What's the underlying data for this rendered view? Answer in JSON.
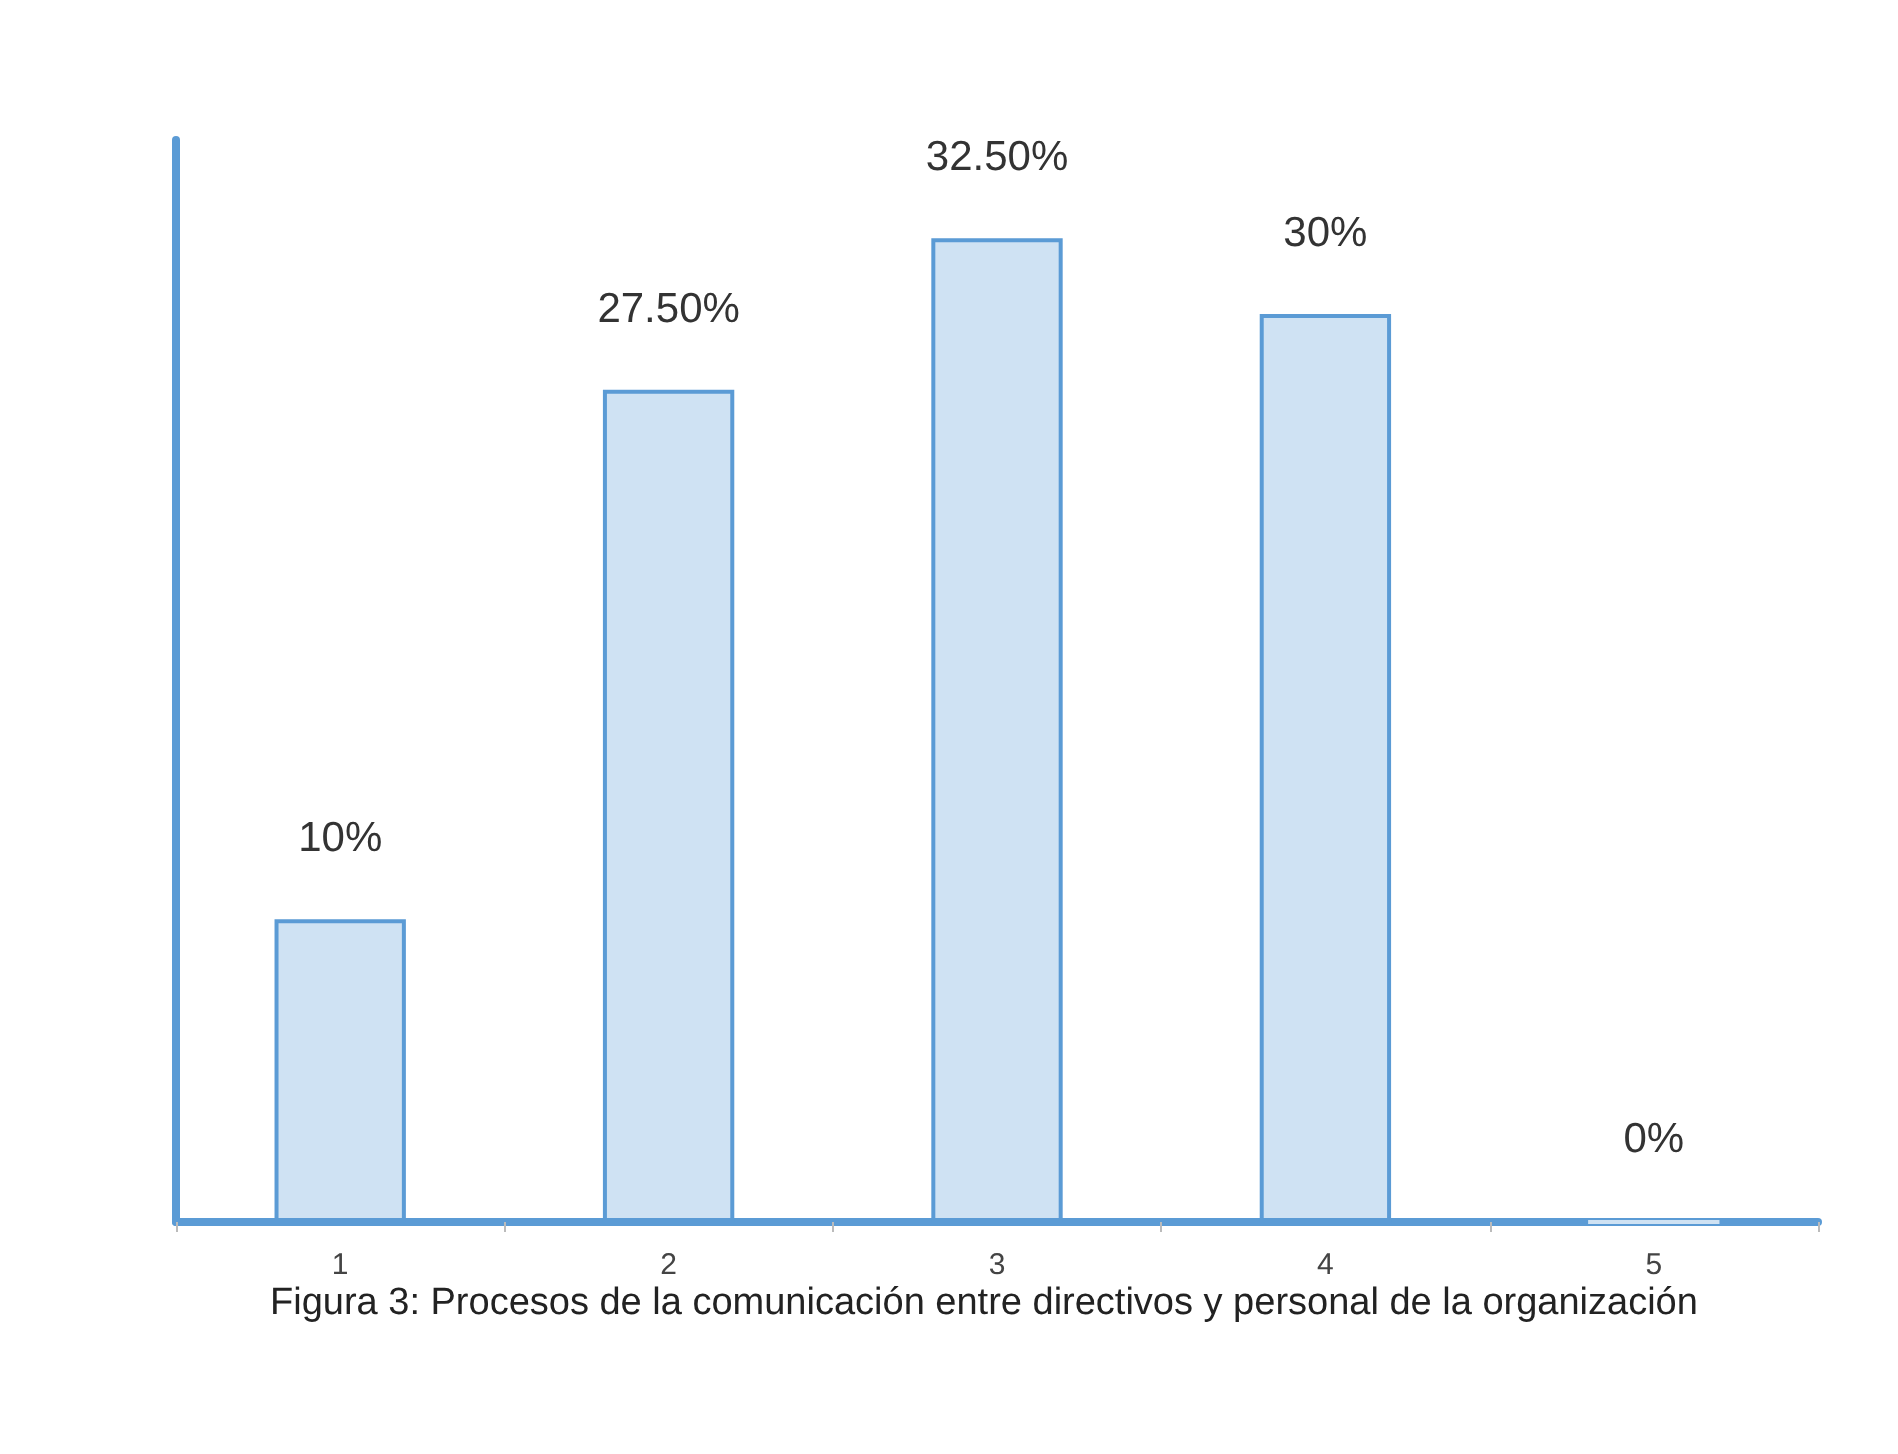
{
  "chart_data": {
    "type": "bar",
    "categories": [
      "1",
      "2",
      "3",
      "4",
      "5"
    ],
    "values": [
      10,
      27.5,
      32.5,
      30,
      0
    ],
    "value_labels": [
      "10%",
      "27.50%",
      "32.50%",
      "30%",
      "0%"
    ],
    "color": "#cfe2f3",
    "tick_labels": "x",
    "grid": false,
    "annotations": [
      "Figura 3: Procesos de la  comunicación entre directivos y personal de la organización"
    ]
  }
}
